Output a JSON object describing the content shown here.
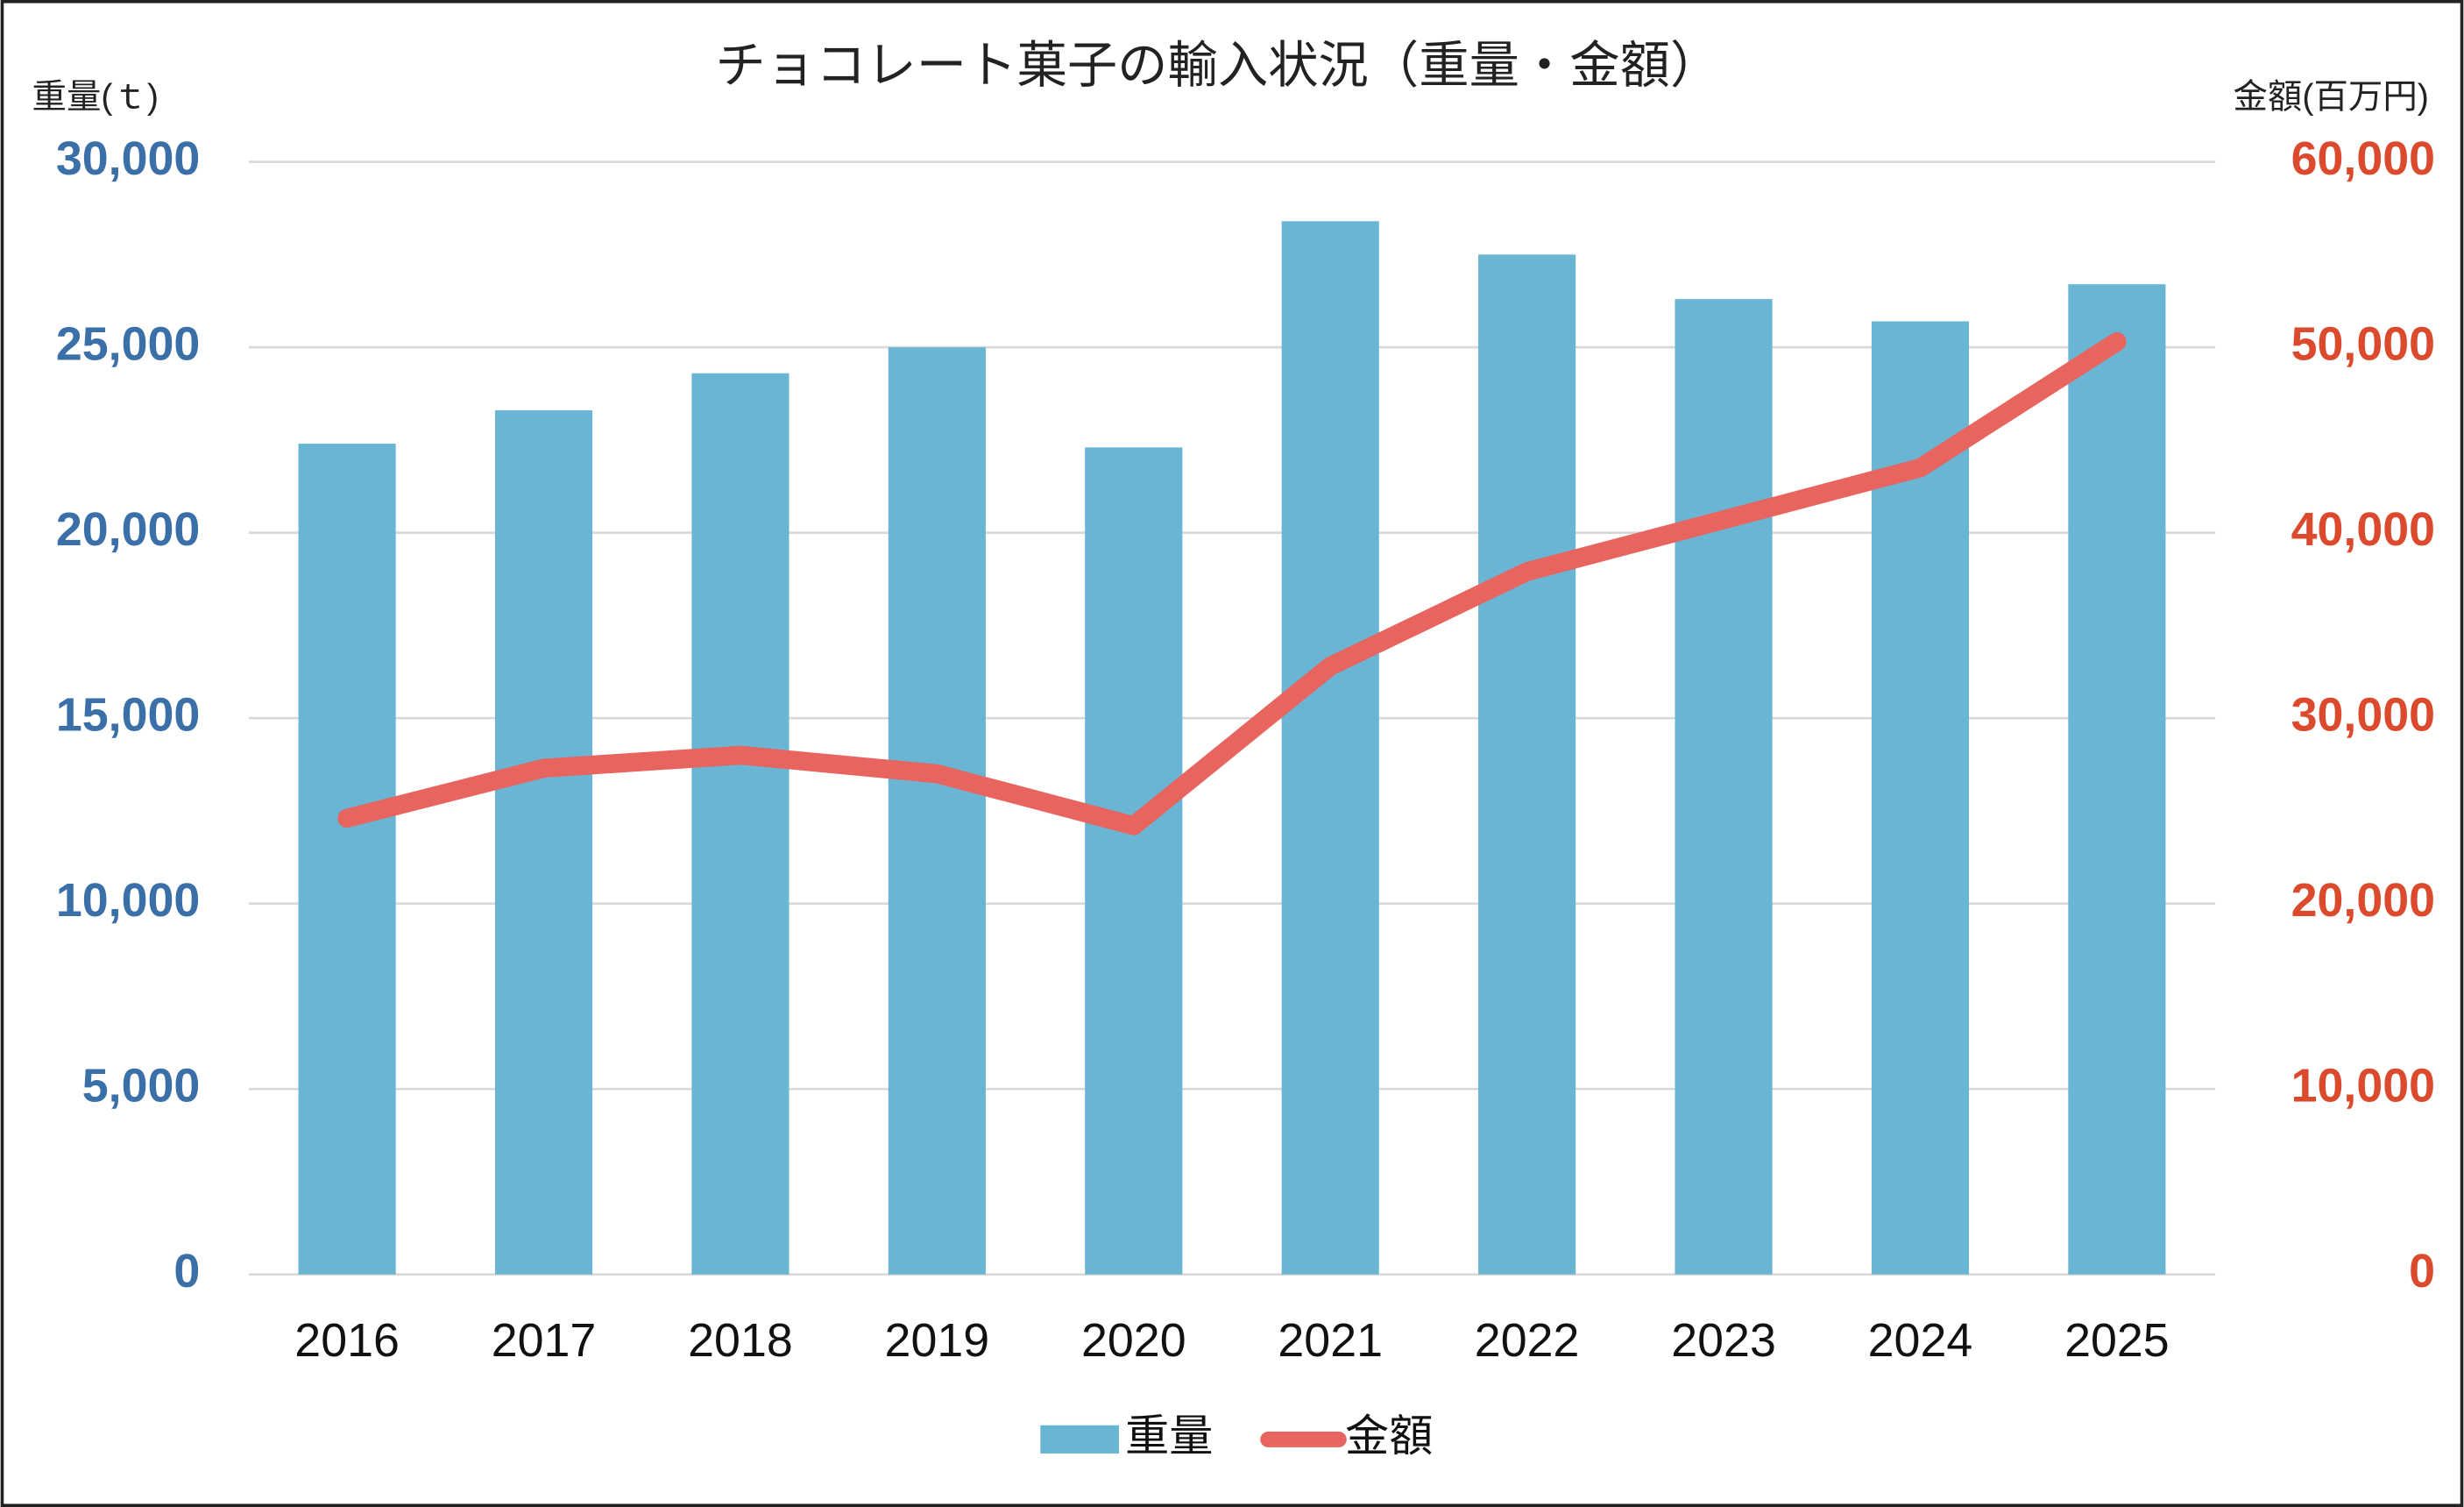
{
  "chart_data": {
    "type": "bar-line",
    "title": "チョコレート菓子の輸入状況（重量・金額）",
    "y_label": "重量(ｔ)",
    "y2_label": "金額(百万円)",
    "categories": [
      "2016",
      "2017",
      "2018",
      "2019",
      "2020",
      "2021",
      "2022",
      "2023",
      "2024",
      "2025"
    ],
    "series": [
      {
        "name": "重量",
        "type": "bar",
        "color": "#6ab4d4",
        "values": [
          22400,
          23300,
          24300,
          25000,
          22300,
          28400,
          27500,
          26300,
          25700,
          26700
        ]
      },
      {
        "name": "金額",
        "type": "line",
        "color": "#e8645f",
        "axis": "y2",
        "values": [
          24600,
          27300,
          28000,
          27000,
          24200,
          32800,
          37900,
          40700,
          43500,
          50300
        ]
      }
    ],
    "ylim": [
      0,
      30000
    ],
    "yticks": [
      0,
      {
        "value": 5000,
        "label": "5,000"
      },
      {
        "value": 10000,
        "label": "10,000"
      },
      {
        "value": 15000,
        "label": "15,000"
      },
      {
        "value": 20000,
        "label": "20,000"
      },
      {
        "value": 25000,
        "label": "25,000"
      },
      {
        "value": 30000,
        "label": "30,000"
      }
    ],
    "y2lim": [
      0,
      60000
    ],
    "y2ticks": [
      0,
      {
        "value": 10000,
        "label": "10,000"
      },
      {
        "value": 20000,
        "label": "20,000"
      },
      {
        "value": 30000,
        "label": "30,000"
      },
      {
        "value": 40000,
        "label": "40,000"
      },
      {
        "value": 50000,
        "label": "50,000"
      },
      {
        "value": 60000,
        "label": "60,000"
      }
    ],
    "y_color": "#3a6fa8",
    "y2_color": "#dc4a2e",
    "grid": true,
    "legend": "bottom"
  }
}
